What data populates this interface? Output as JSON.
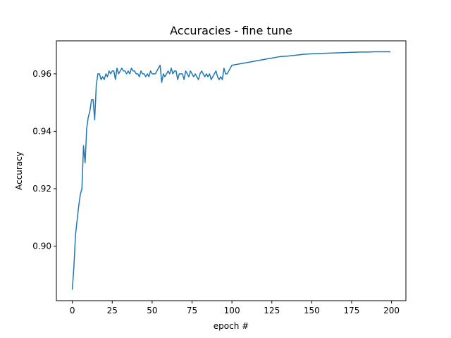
{
  "chart_data": {
    "type": "line",
    "title": "Accuracies - fine tune",
    "xlabel": "epoch #",
    "ylabel": "Accuracy",
    "xlim": [
      -10,
      209
    ],
    "ylim": [
      0.881,
      0.9715
    ],
    "xticks": [
      0,
      25,
      50,
      75,
      100,
      125,
      150,
      175,
      200
    ],
    "yticks": [
      0.9,
      0.92,
      0.94,
      0.96
    ],
    "xtick_labels": [
      "0",
      "25",
      "50",
      "75",
      "100",
      "125",
      "150",
      "175",
      "200"
    ],
    "ytick_labels": [
      "0.90",
      "0.92",
      "0.94",
      "0.96"
    ],
    "grid": false,
    "series": [
      {
        "color": "#1f77b4",
        "x": [
          0,
          1,
          2,
          3,
          4,
          5,
          6,
          7,
          8,
          9,
          10,
          11,
          12,
          13,
          14,
          15,
          16,
          17,
          18,
          19,
          20,
          21,
          22,
          23,
          24,
          25,
          26,
          27,
          28,
          29,
          30,
          31,
          32,
          33,
          34,
          35,
          36,
          37,
          38,
          39,
          40,
          41,
          42,
          43,
          44,
          45,
          46,
          47,
          48,
          49,
          50,
          51,
          52,
          53,
          54,
          55,
          56,
          57,
          58,
          59,
          60,
          61,
          62,
          63,
          64,
          65,
          66,
          67,
          68,
          69,
          70,
          71,
          72,
          73,
          74,
          75,
          76,
          77,
          78,
          79,
          80,
          81,
          82,
          83,
          84,
          85,
          86,
          87,
          88,
          89,
          90,
          91,
          92,
          93,
          94,
          95,
          96,
          97,
          98,
          99,
          100,
          105,
          110,
          115,
          120,
          125,
          130,
          135,
          140,
          145,
          150,
          155,
          160,
          165,
          170,
          175,
          180,
          185,
          190,
          195,
          199
        ],
        "y": [
          0.885,
          0.893,
          0.904,
          0.909,
          0.914,
          0.918,
          0.92,
          0.935,
          0.929,
          0.941,
          0.945,
          0.947,
          0.951,
          0.951,
          0.944,
          0.956,
          0.96,
          0.96,
          0.958,
          0.959,
          0.958,
          0.96,
          0.959,
          0.961,
          0.96,
          0.961,
          0.961,
          0.958,
          0.962,
          0.96,
          0.961,
          0.962,
          0.961,
          0.961,
          0.96,
          0.961,
          0.96,
          0.962,
          0.961,
          0.961,
          0.96,
          0.96,
          0.959,
          0.961,
          0.96,
          0.96,
          0.959,
          0.96,
          0.959,
          0.961,
          0.96,
          0.96,
          0.96,
          0.961,
          0.962,
          0.963,
          0.957,
          0.96,
          0.959,
          0.96,
          0.961,
          0.96,
          0.962,
          0.96,
          0.961,
          0.961,
          0.958,
          0.96,
          0.96,
          0.96,
          0.958,
          0.961,
          0.96,
          0.959,
          0.961,
          0.96,
          0.959,
          0.96,
          0.959,
          0.958,
          0.96,
          0.961,
          0.96,
          0.959,
          0.96,
          0.959,
          0.96,
          0.958,
          0.959,
          0.96,
          0.961,
          0.959,
          0.958,
          0.959,
          0.958,
          0.962,
          0.96,
          0.96,
          0.961,
          0.962,
          0.963,
          0.9635,
          0.964,
          0.9645,
          0.965,
          0.9655,
          0.966,
          0.9662,
          0.9665,
          0.9668,
          0.967,
          0.9671,
          0.9672,
          0.9673,
          0.9674,
          0.9675,
          0.9676,
          0.9676,
          0.9677,
          0.9677,
          0.9677
        ]
      }
    ]
  }
}
